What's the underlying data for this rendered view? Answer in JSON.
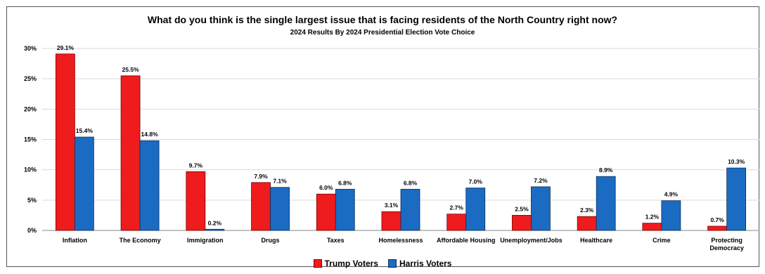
{
  "chart_data": {
    "type": "bar",
    "title": "What do you think is the single largest issue that is facing residents of the North Country right now?",
    "subtitle": "2024 Results By 2024 Presidential Election Vote Choice",
    "categories": [
      "Inflation",
      "The Economy",
      "Immigration",
      "Drugs",
      "Taxes",
      "Homelessness",
      "Affordable Housing",
      "Unemployment/Jobs",
      "Healthcare",
      "Crime",
      "Protecting Democracy"
    ],
    "series": [
      {
        "name": "Trump Voters",
        "values": [
          29.1,
          25.5,
          9.7,
          7.9,
          6.0,
          3.1,
          2.7,
          2.5,
          2.3,
          1.2,
          0.7
        ],
        "color": "#ee1c1c"
      },
      {
        "name": "Harris Voters",
        "values": [
          15.4,
          14.8,
          0.2,
          7.1,
          6.8,
          6.8,
          7.0,
          7.2,
          8.9,
          4.9,
          10.3
        ],
        "color": "#1b6bc2"
      }
    ],
    "ylim": [
      0,
      30
    ],
    "yticks": [
      "0%",
      "5%",
      "10%",
      "15%",
      "20%",
      "25%",
      "30%"
    ],
    "grid": true,
    "legend_position": "bottom"
  }
}
